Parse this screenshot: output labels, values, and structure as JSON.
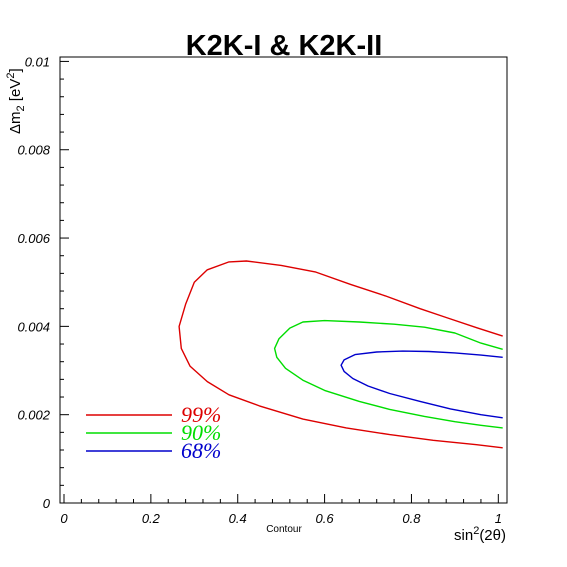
{
  "chart_data": {
    "type": "line",
    "title": "K2K-I & K2K-II",
    "xlabel": "sin²(2θ)",
    "xlabel_parts": {
      "base": "sin",
      "sup": "2",
      "rest": "(2θ)"
    },
    "ylabel": "Δm₂ [eV²]",
    "ylabel_parts": {
      "delta": "Δm",
      "sub": "2",
      "unit": " [eV",
      "sup": "2",
      "close": "]"
    },
    "caption": "Contour",
    "xlim": [
      0,
      1.02
    ],
    "ylim": [
      0,
      0.0101
    ],
    "grid": false,
    "legend_position": "bottom-left",
    "x_ticks": [
      {
        "value": 0,
        "label": "0"
      },
      {
        "value": 0.2,
        "label": "0.2"
      },
      {
        "value": 0.4,
        "label": "0.4"
      },
      {
        "value": 0.6,
        "label": "0.6"
      },
      {
        "value": 0.8,
        "label": "0.8"
      },
      {
        "value": 1.0,
        "label": "1"
      }
    ],
    "y_ticks": [
      {
        "value": 0,
        "label": "0"
      },
      {
        "value": 0.002,
        "label": "0.002"
      },
      {
        "value": 0.004,
        "label": "0.004"
      },
      {
        "value": 0.006,
        "label": "0.006"
      },
      {
        "value": 0.008,
        "label": "0.008"
      },
      {
        "value": 0.01,
        "label": "0.01"
      }
    ],
    "series": [
      {
        "name": "99%",
        "color": "#dd0000",
        "points": [
          [
            1.01,
            0.00378
          ],
          [
            0.95,
            0.00397
          ],
          [
            0.88,
            0.0042
          ],
          [
            0.82,
            0.0044
          ],
          [
            0.74,
            0.00469
          ],
          [
            0.66,
            0.00495
          ],
          [
            0.58,
            0.00523
          ],
          [
            0.5,
            0.00538
          ],
          [
            0.42,
            0.00548
          ],
          [
            0.38,
            0.00546
          ],
          [
            0.33,
            0.00528
          ],
          [
            0.3,
            0.005
          ],
          [
            0.28,
            0.0045
          ],
          [
            0.265,
            0.004
          ],
          [
            0.27,
            0.0035
          ],
          [
            0.29,
            0.0031
          ],
          [
            0.33,
            0.00275
          ],
          [
            0.38,
            0.00245
          ],
          [
            0.45,
            0.0022
          ],
          [
            0.55,
            0.0019
          ],
          [
            0.65,
            0.0017
          ],
          [
            0.75,
            0.00155
          ],
          [
            0.85,
            0.00142
          ],
          [
            0.95,
            0.00132
          ],
          [
            1.01,
            0.00125
          ]
        ]
      },
      {
        "name": "90%",
        "color": "#00dd00",
        "points": [
          [
            1.01,
            0.00348
          ],
          [
            0.96,
            0.00362
          ],
          [
            0.9,
            0.00385
          ],
          [
            0.83,
            0.00398
          ],
          [
            0.76,
            0.00405
          ],
          [
            0.68,
            0.0041
          ],
          [
            0.6,
            0.00413
          ],
          [
            0.55,
            0.0041
          ],
          [
            0.52,
            0.00396
          ],
          [
            0.495,
            0.00372
          ],
          [
            0.485,
            0.0035
          ],
          [
            0.49,
            0.0033
          ],
          [
            0.51,
            0.00305
          ],
          [
            0.55,
            0.00278
          ],
          [
            0.6,
            0.00255
          ],
          [
            0.68,
            0.0023
          ],
          [
            0.75,
            0.00212
          ],
          [
            0.83,
            0.00196
          ],
          [
            0.9,
            0.00184
          ],
          [
            0.96,
            0.00176
          ],
          [
            1.01,
            0.0017
          ]
        ]
      },
      {
        "name": "68%",
        "color": "#0000cc",
        "points": [
          [
            1.01,
            0.0033
          ],
          [
            0.96,
            0.00335
          ],
          [
            0.9,
            0.0034
          ],
          [
            0.84,
            0.00343
          ],
          [
            0.78,
            0.00344
          ],
          [
            0.72,
            0.00342
          ],
          [
            0.67,
            0.00336
          ],
          [
            0.645,
            0.00324
          ],
          [
            0.638,
            0.00312
          ],
          [
            0.645,
            0.00298
          ],
          [
            0.665,
            0.00282
          ],
          [
            0.7,
            0.00265
          ],
          [
            0.75,
            0.00248
          ],
          [
            0.82,
            0.0023
          ],
          [
            0.89,
            0.00213
          ],
          [
            0.96,
            0.002
          ],
          [
            1.01,
            0.00193
          ]
        ]
      }
    ]
  }
}
